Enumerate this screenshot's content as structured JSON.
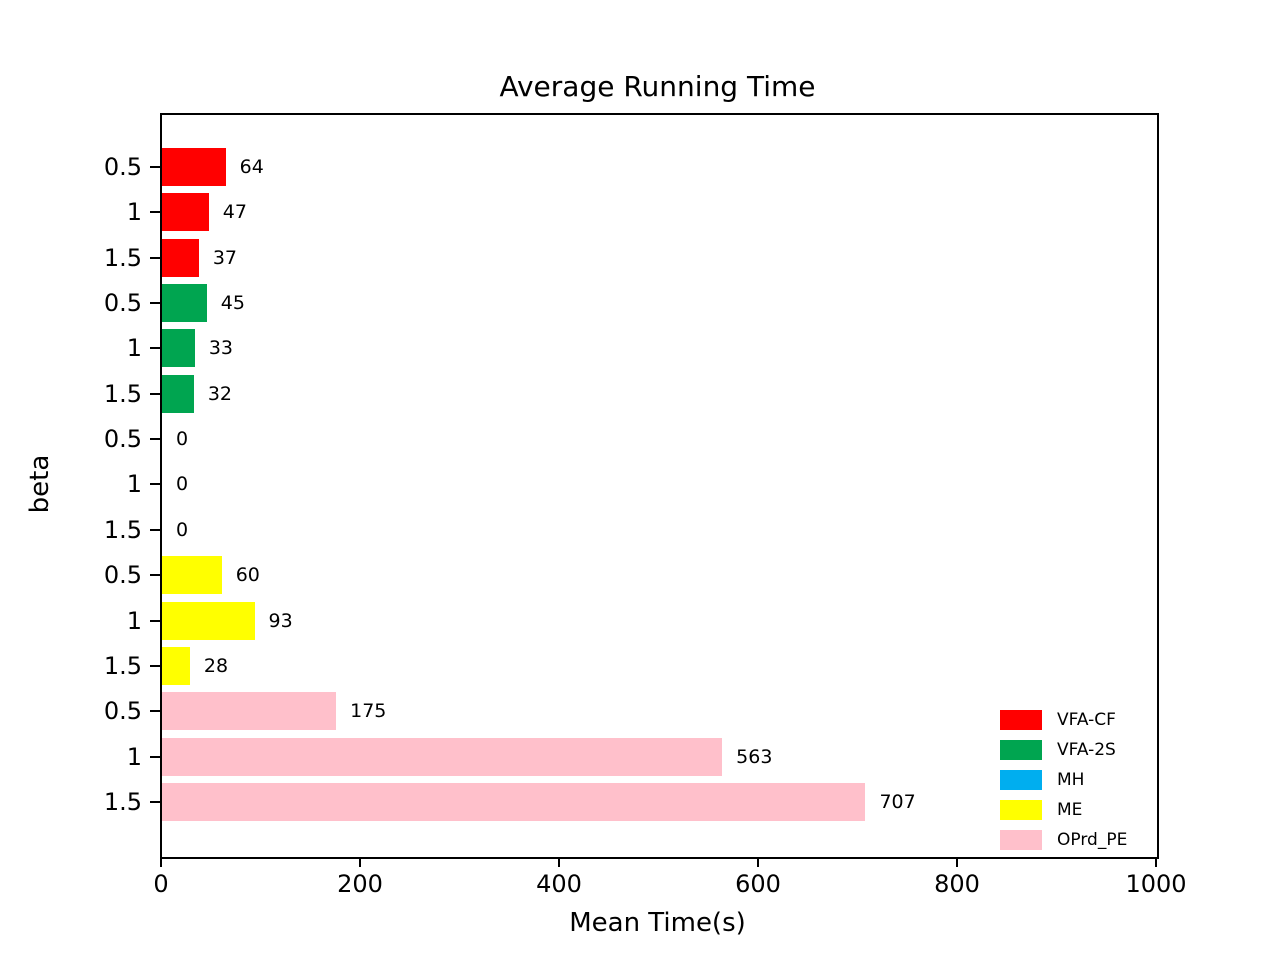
{
  "chart_data": {
    "type": "bar",
    "orientation": "horizontal",
    "title": "Average Running Time",
    "xlabel": "Mean Time(s)",
    "ylabel": "beta",
    "xlim": [
      0,
      1000
    ],
    "xticks": [
      "0",
      "200",
      "400",
      "600",
      "800",
      "1000"
    ],
    "xtick_values": [
      0,
      200,
      400,
      600,
      800,
      1000
    ],
    "categories": [
      "0.5",
      "1",
      "1.5"
    ],
    "grid": false,
    "legend_position": "lower right",
    "series": [
      {
        "name": "VFA-CF",
        "color": "#ff0000",
        "values": [
          64,
          47,
          37
        ]
      },
      {
        "name": "VFA-2S",
        "color": "#00a550",
        "values": [
          45,
          33,
          32
        ]
      },
      {
        "name": "MH",
        "color": "#00aeef",
        "values": [
          0,
          0,
          0
        ]
      },
      {
        "name": "ME",
        "color": "#ffff00",
        "values": [
          60,
          93,
          28
        ]
      },
      {
        "name": "OPrd_PE",
        "color": "#ffc0cb",
        "values": [
          175,
          563,
          707
        ]
      }
    ],
    "bar_labels": [
      64,
      47,
      37,
      45,
      33,
      32,
      0,
      0,
      0,
      60,
      93,
      28,
      175,
      563,
      707
    ]
  }
}
